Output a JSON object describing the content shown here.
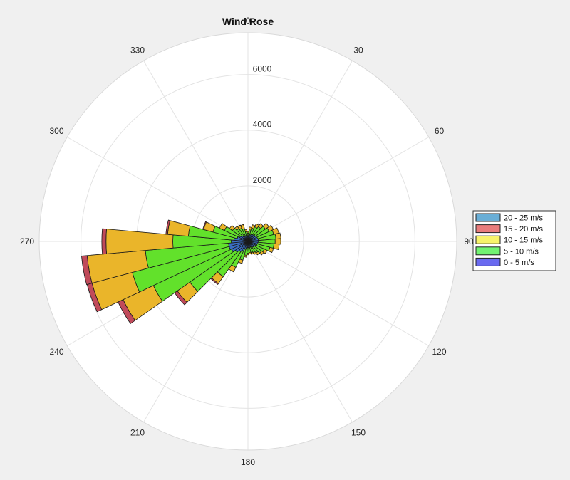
{
  "colors": {
    "background": "#f0f0f0",
    "plot_background": "#ffffff",
    "grid": "#e3e3e3",
    "bar_edge": "#1a1a1a"
  },
  "chart_data": {
    "type": "wind-rose",
    "title": "Wind Rose",
    "angle_tick_labels": [
      "0",
      "30",
      "60",
      "90",
      "120",
      "150",
      "180",
      "210",
      "240",
      "270",
      "300",
      "330"
    ],
    "angle_ticks_deg": [
      0,
      30,
      60,
      90,
      120,
      150,
      180,
      210,
      240,
      270,
      300,
      330
    ],
    "radial_ticks": [
      2000,
      4000,
      6000
    ],
    "radial_tick_labels": [
      "2000",
      "4000",
      "6000"
    ],
    "r_max": 7500,
    "grid": true,
    "legend_placement": "right",
    "bin_width_deg": 10,
    "bins": [
      {
        "name": "20 - 25 m/s",
        "color": "#6aaed6"
      },
      {
        "name": "15 - 20 m/s",
        "color": "#e87c7c"
      },
      {
        "name": "10 - 15 m/s",
        "color": "#f7f36b"
      },
      {
        "name": "5 - 10 m/s",
        "color": "#72f372"
      },
      {
        "name": "0 - 5 m/s",
        "color": "#6a6af0"
      }
    ],
    "stack_bins": [
      {
        "color": "#3b6fc4"
      },
      {
        "color": "#62e12b"
      },
      {
        "color": "#eab52a"
      },
      {
        "color": "#c04a5a"
      },
      {
        "color": "#5aa0d0"
      }
    ],
    "directions": [
      {
        "dir": 0,
        "values": [
          200,
          100,
          60,
          0,
          0
        ]
      },
      {
        "dir": 10,
        "values": [
          220,
          200,
          100,
          0,
          0
        ]
      },
      {
        "dir": 20,
        "values": [
          250,
          250,
          120,
          0,
          0
        ]
      },
      {
        "dir": 30,
        "values": [
          280,
          300,
          120,
          0,
          0
        ]
      },
      {
        "dir": 40,
        "values": [
          300,
          350,
          130,
          0,
          0
        ]
      },
      {
        "dir": 50,
        "values": [
          320,
          450,
          150,
          0,
          0
        ]
      },
      {
        "dir": 60,
        "values": [
          340,
          500,
          170,
          0,
          0
        ]
      },
      {
        "dir": 70,
        "values": [
          360,
          600,
          190,
          0,
          0
        ]
      },
      {
        "dir": 80,
        "values": [
          380,
          630,
          180,
          0,
          0
        ]
      },
      {
        "dir": 90,
        "values": [
          380,
          600,
          200,
          0,
          0
        ]
      },
      {
        "dir": 100,
        "values": [
          360,
          580,
          190,
          0,
          0
        ]
      },
      {
        "dir": 110,
        "values": [
          340,
          480,
          130,
          0,
          0
        ]
      },
      {
        "dir": 120,
        "values": [
          300,
          350,
          110,
          0,
          0
        ]
      },
      {
        "dir": 130,
        "values": [
          280,
          320,
          90,
          0,
          0
        ]
      },
      {
        "dir": 140,
        "values": [
          260,
          250,
          80,
          0,
          0
        ]
      },
      {
        "dir": 150,
        "values": [
          230,
          220,
          70,
          0,
          0
        ]
      },
      {
        "dir": 160,
        "values": [
          220,
          200,
          60,
          0,
          0
        ]
      },
      {
        "dir": 170,
        "values": [
          210,
          190,
          50,
          0,
          0
        ]
      },
      {
        "dir": 180,
        "values": [
          220,
          200,
          60,
          0,
          0
        ]
      },
      {
        "dir": 190,
        "values": [
          260,
          240,
          70,
          0,
          0
        ]
      },
      {
        "dir": 200,
        "values": [
          300,
          400,
          120,
          0,
          0
        ]
      },
      {
        "dir": 210,
        "values": [
          380,
          650,
          180,
          0,
          0
        ]
      },
      {
        "dir": 220,
        "values": [
          450,
          1100,
          300,
          40,
          0
        ]
      },
      {
        "dir": 230,
        "values": [
          550,
          2000,
          550,
          120,
          0
        ]
      },
      {
        "dir": 240,
        "values": [
          650,
          3100,
          1200,
          200,
          0
        ]
      },
      {
        "dir": 250,
        "values": [
          700,
          3600,
          1500,
          180,
          0
        ]
      },
      {
        "dir": 260,
        "values": [
          700,
          3000,
          2100,
          200,
          0
        ]
      },
      {
        "dir": 270,
        "values": [
          600,
          2100,
          2400,
          150,
          0
        ]
      },
      {
        "dir": 280,
        "values": [
          500,
          1650,
          750,
          60,
          0
        ]
      },
      {
        "dir": 290,
        "values": [
          400,
          900,
          350,
          30,
          0
        ]
      },
      {
        "dir": 300,
        "values": [
          330,
          600,
          200,
          0,
          0
        ]
      },
      {
        "dir": 310,
        "values": [
          280,
          400,
          130,
          0,
          0
        ]
      },
      {
        "dir": 320,
        "values": [
          250,
          320,
          100,
          0,
          0
        ]
      },
      {
        "dir": 330,
        "values": [
          230,
          300,
          120,
          0,
          0
        ]
      },
      {
        "dir": 340,
        "values": [
          220,
          260,
          150,
          0,
          0
        ]
      },
      {
        "dir": 350,
        "values": [
          200,
          150,
          80,
          0,
          0
        ]
      }
    ]
  }
}
